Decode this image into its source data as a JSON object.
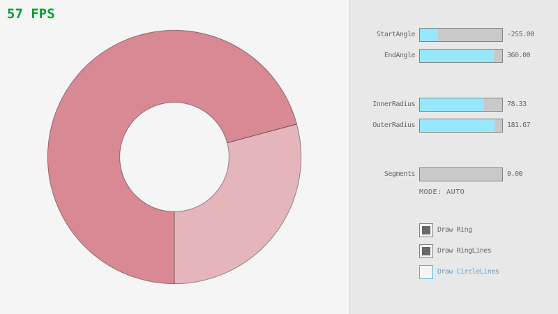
{
  "fps": {
    "label": "57 FPS"
  },
  "ring": {
    "start_angle": -255.0,
    "end_angle": 360.0,
    "inner_radius": 78.33,
    "outer_radius": 181.67,
    "segments": 0
  },
  "panel": {
    "sliders": [
      {
        "label": "StartAngle",
        "value": "-255.00",
        "fill_pct": 21.7
      },
      {
        "label": "EndAngle",
        "value": "360.00",
        "fill_pct": 90.0
      },
      {
        "label": "InnerRadius",
        "value": "78.33",
        "fill_pct": 78.3
      },
      {
        "label": "OuterRadius",
        "value": "181.67",
        "fill_pct": 90.8
      },
      {
        "label": "Segments",
        "value": "0.00",
        "fill_pct": 0.0
      }
    ],
    "mode_label": "MODE: AUTO",
    "checkboxes": [
      {
        "label": "Draw Ring",
        "checked": true,
        "focused": false
      },
      {
        "label": "Draw RingLines",
        "checked": true,
        "focused": false
      },
      {
        "label": "Draw CircleLines",
        "checked": false,
        "focused": true
      }
    ]
  },
  "colors": {
    "background": "#F5F5F5",
    "panel_bg": "#E8E8E8",
    "panel_divider": "#DADADA",
    "fps_green": "#009E2F",
    "text_gray": "#686868",
    "slider_border": "#838383",
    "slider_track": "#C9C9C9",
    "slider_fill": "#97E8FF",
    "checkbox_check": "#686868",
    "focused_border": "#5BB2D9",
    "focused_text": "#6C9BBC",
    "ring_single_pass": "#E5B5BC",
    "ring_double_pass": "#D98994",
    "ring_line": "rgba(0,0,0,0.4)"
  }
}
